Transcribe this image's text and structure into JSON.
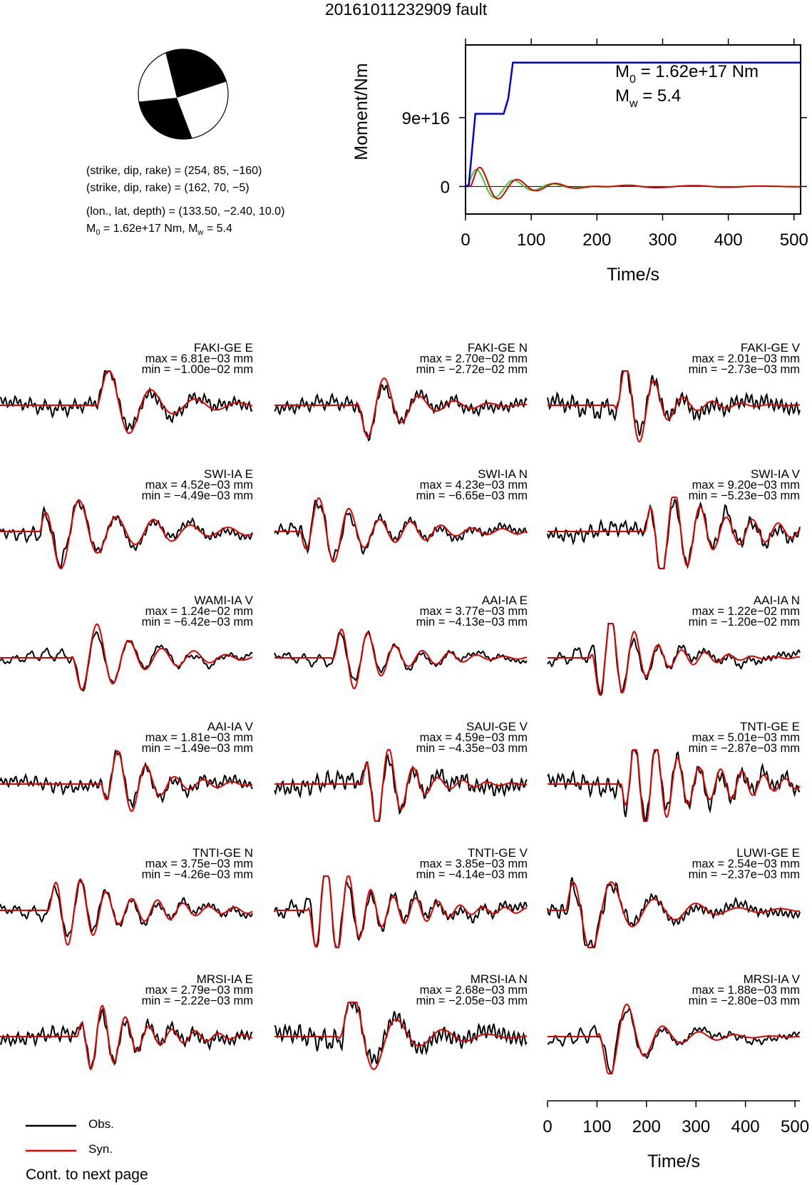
{
  "title": "20161011232909 fault",
  "mechanism": {
    "line1": "(strike, dip, rake) = (254, 85, −160)",
    "line2": "(strike, dip, rake) = (162, 70, −5)",
    "line3": "(lon., lat, depth) = (133.50, −2.40, 10.0)",
    "line4_m0": "M",
    "line4_rest1": " = 1.62e+17 Nm, M",
    "line4_rest2": " = 5.4",
    "sub0": "0",
    "subw": "w"
  },
  "colors": {
    "observed": "#000000",
    "synthetic": "#e00000",
    "cumulative_moment": "#0000dd",
    "moment_rate": "#33cc33"
  },
  "moment_plot": {
    "ylabel": "Moment/Nm",
    "xlabel": "Time/s",
    "y_ticks": [
      "0",
      "9e+16"
    ],
    "x_ticks": [
      "0",
      "100",
      "200",
      "300",
      "400",
      "500"
    ],
    "m0_prefix": "M",
    "m0_sub": "0",
    "m0_value": " = 1.62e+17 Nm",
    "mw_prefix": "M",
    "mw_sub": "w",
    "mw_value": " = 5.4"
  },
  "chart_data": {
    "type": "line",
    "moment_function": {
      "xlabel": "Time/s",
      "ylabel": "Moment/Nm",
      "xlim": [
        0,
        510
      ],
      "ylim": [
        -3.6e+16,
        1.85e+17
      ],
      "x_ticks": [
        0,
        100,
        200,
        300,
        400,
        500
      ],
      "y_ticks": [
        0,
        9e+16
      ],
      "series": [
        {
          "x": [
            0,
            5,
            15,
            40,
            58,
            65,
            72,
            510
          ],
          "values": [
            0,
            2000000000000000.0,
            9.5e+16,
            9.5e+16,
            9.5e+16,
            1.15e+17,
            1.62e+17,
            1.62e+17
          ]
        }
      ],
      "annotations": [
        "M0 = 1.62e+17 Nm",
        "Mw = 5.4"
      ]
    },
    "waveform_time_axis": {
      "xlabel": "Time/s",
      "xlim": [
        0,
        510
      ],
      "x_ticks": [
        0,
        100,
        200,
        300,
        400,
        500
      ]
    },
    "traces": [
      {
        "station": "FAKI-GE E",
        "max": "max = 6.81e−03 mm",
        "min": "min = −1.00e−02 mm",
        "seed": 11
      },
      {
        "station": "FAKI-GE N",
        "max": "max = 2.70e−02 mm",
        "min": "min = −2.72e−02 mm",
        "seed": 12
      },
      {
        "station": "FAKI-GE V",
        "max": "max = 2.01e−03 mm",
        "min": "min = −2.73e−03 mm",
        "seed": 13
      },
      {
        "station": "SWI-IA E",
        "max": "max = 4.52e−03 mm",
        "min": "min = −4.49e−03 mm",
        "seed": 21
      },
      {
        "station": "SWI-IA N",
        "max": "max = 4.23e−03 mm",
        "min": "min = −6.65e−03 mm",
        "seed": 22
      },
      {
        "station": "SWI-IA V",
        "max": "max = 9.20e−03 mm",
        "min": "min = −5.23e−03 mm",
        "seed": 23
      },
      {
        "station": "WAMI-IA V",
        "max": "max = 1.24e−02 mm",
        "min": "min = −6.42e−03 mm",
        "seed": 31
      },
      {
        "station": "AAI-IA E",
        "max": "max = 3.77e−03 mm",
        "min": "min = −4.13e−03 mm",
        "seed": 32
      },
      {
        "station": "AAI-IA N",
        "max": "max = 1.22e−02 mm",
        "min": "min = −1.20e−02 mm",
        "seed": 33
      },
      {
        "station": "AAI-IA V",
        "max": "max = 1.81e−03 mm",
        "min": "min = −1.49e−03 mm",
        "seed": 41
      },
      {
        "station": "SAUI-GE V",
        "max": "max = 4.59e−03 mm",
        "min": "min = −4.35e−03 mm",
        "seed": 42
      },
      {
        "station": "TNTI-GE E",
        "max": "max = 5.01e−03 mm",
        "min": "min = −2.87e−03 mm",
        "seed": 43
      },
      {
        "station": "TNTI-GE N",
        "max": "max = 3.75e−03 mm",
        "min": "min = −4.26e−03 mm",
        "seed": 51
      },
      {
        "station": "TNTI-GE V",
        "max": "max = 3.85e−03 mm",
        "min": "min = −4.14e−03 mm",
        "seed": 52
      },
      {
        "station": "LUWI-GE E",
        "max": "max = 2.54e−03 mm",
        "min": "min = −2.37e−03 mm",
        "seed": 53
      },
      {
        "station": "MRSI-IA E",
        "max": "max = 2.79e−03 mm",
        "min": "min = −2.22e−03 mm",
        "seed": 61
      },
      {
        "station": "MRSI-IA N",
        "max": "max = 2.68e−03 mm",
        "min": "min = −2.05e−03 mm",
        "seed": 62
      },
      {
        "station": "MRSI-IA V",
        "max": "max = 1.88e−03 mm",
        "min": "min = −2.80e−03 mm",
        "seed": 63
      }
    ]
  },
  "legend": {
    "observed": "Obs.",
    "synthetic": "Syn."
  },
  "footer": "Cont. to next page"
}
